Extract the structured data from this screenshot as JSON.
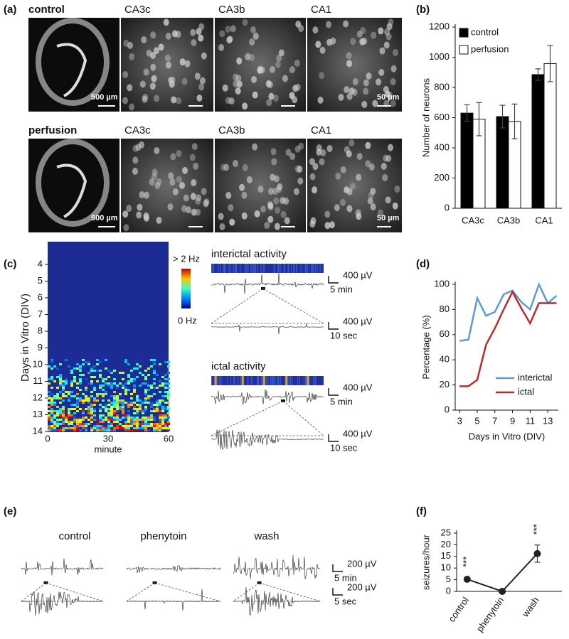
{
  "figure": {
    "a": {
      "label": "(a)",
      "rows": [
        {
          "condition": "control",
          "regions": [
            "CA3c",
            "CA3b",
            "CA1"
          ],
          "slice_scale": "500 µm",
          "cell_scale": "50 µm"
        },
        {
          "condition": "perfusion",
          "regions": [
            "CA3c",
            "CA3b",
            "CA1"
          ],
          "slice_scale": "500 µm",
          "cell_scale": "50 µm"
        }
      ]
    },
    "c": {
      "label": "(c)",
      "y_label": "Days in Vitro (DIV)",
      "y_ticks": [
        4,
        5,
        6,
        7,
        8,
        9,
        10,
        11,
        12,
        13,
        14
      ],
      "x_ticks": [
        0,
        30,
        60
      ],
      "x_label": "minute",
      "colorbar_max": "> 2 Hz",
      "colorbar_min": "0 Hz",
      "traces": [
        {
          "title": "interictal activity",
          "scales": [
            [
              "400 µV",
              "5 min"
            ],
            [
              "400 µV",
              "10 sec"
            ]
          ]
        },
        {
          "title": "ictal activity",
          "scales": [
            [
              "400 µV",
              "5 min"
            ],
            [
              "400 µV",
              "10 sec"
            ]
          ]
        }
      ]
    },
    "e": {
      "label": "(e)",
      "conditions": [
        "control",
        "phenytoin",
        "wash"
      ],
      "scales": [
        [
          "200 µV",
          "5 min"
        ],
        [
          "200 µV",
          "5 sec"
        ]
      ]
    }
  },
  "chart_data": [
    {
      "type": "bar",
      "panel_label": "(b)",
      "y_label": "Number of neurons",
      "categories": [
        "CA3c",
        "CA3b",
        "CA1"
      ],
      "series": [
        {
          "name": "control",
          "color": "#000000",
          "values": [
            630,
            607,
            885
          ],
          "errors": [
            55,
            75,
            38
          ]
        },
        {
          "name": "perfusion",
          "color": "#ffffff",
          "values": [
            590,
            575,
            958
          ],
          "errors": [
            110,
            115,
            120
          ]
        }
      ],
      "ylim": [
        0,
        1200
      ],
      "yticks": [
        0,
        200,
        400,
        600,
        800,
        1000,
        1200
      ],
      "legend": "upper left"
    },
    {
      "type": "line",
      "panel_label": "(d)",
      "y_label": "Percentage (%)",
      "x_label": "Days in Vitro (DIV)",
      "x": [
        3,
        4,
        5,
        6,
        7,
        8,
        9,
        10,
        11,
        12,
        13,
        14
      ],
      "series": [
        {
          "name": "interictal",
          "color": "#5b9bd5",
          "values": [
            55,
            56,
            89,
            75,
            78,
            92,
            95,
            86,
            80,
            100,
            85,
            91
          ]
        },
        {
          "name": "ictal",
          "color": "#c0282a",
          "values": [
            19,
            19,
            24,
            52,
            65,
            80,
            94,
            81,
            69,
            85,
            85,
            85
          ]
        }
      ],
      "xlim": [
        2.5,
        14.2
      ],
      "xticks": [
        3,
        5,
        7,
        9,
        11,
        13
      ],
      "ylim": [
        0,
        100
      ],
      "yticks": [
        0,
        20,
        40,
        60,
        80,
        100
      ],
      "legend": "lower right"
    },
    {
      "type": "errorline",
      "panel_label": "(f)",
      "y_label": "seizures/hour",
      "categories": [
        "control",
        "phenytoin",
        "wash"
      ],
      "series": [
        {
          "color": "#222222",
          "values": [
            5.2,
            0,
            16.2
          ],
          "errors": [
            0.8,
            0,
            3.7
          ]
        }
      ],
      "annotations": [
        "***",
        null,
        "***"
      ],
      "ylim": [
        0,
        25
      ],
      "yticks": [
        0,
        5,
        10,
        15,
        20,
        25
      ]
    }
  ]
}
